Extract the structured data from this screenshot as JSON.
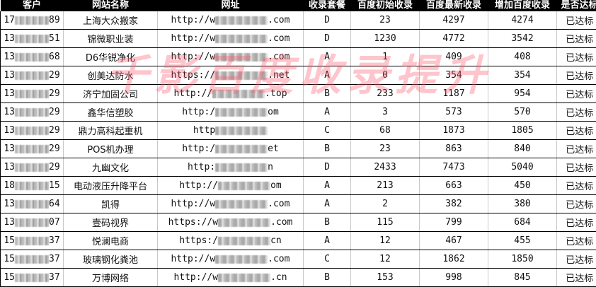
{
  "headers": [
    "客户",
    "网站名称",
    "网址",
    "收录套餐",
    "百度初始收录",
    "百度最新收录",
    "增加百度收录",
    "是否达标"
  ],
  "rows": [
    {
      "customer_prefix": "17",
      "customer_suffix": "89",
      "name": "上海大众搬家",
      "url_prefix": "http://w",
      "url_suffix": ".com",
      "plan": "D",
      "initial": "23",
      "latest": "4297",
      "increase": "4274",
      "status": "已达标"
    },
    {
      "customer_prefix": "13",
      "customer_suffix": "51",
      "name": "锦微职业装",
      "url_prefix": "http://w",
      "url_suffix": ".com",
      "plan": "D",
      "initial": "1230",
      "latest": "4772",
      "increase": "3542",
      "status": "已达标"
    },
    {
      "customer_prefix": "13",
      "customer_suffix": "68",
      "name": "D6华锐净化",
      "url_prefix": "http://w",
      "url_suffix": ".com",
      "plan": "A",
      "initial": "1",
      "latest": "409",
      "increase": "408",
      "status": "已达标"
    },
    {
      "customer_prefix": "13",
      "customer_suffix": "29",
      "name": "创美达防水",
      "url_prefix": "https://",
      "url_suffix": ".net",
      "plan": "A",
      "initial": "0",
      "latest": "354",
      "increase": "354",
      "status": "已达标"
    },
    {
      "customer_prefix": "13",
      "customer_suffix": "29",
      "name": "济宁加固公司",
      "url_prefix": "http://",
      "url_suffix": ".top",
      "plan": "B",
      "initial": "233",
      "latest": "1187",
      "increase": "954",
      "status": "已达标"
    },
    {
      "customer_prefix": "13",
      "customer_suffix": "29",
      "name": "鑫华信塑胶",
      "url_prefix": "http:/",
      "url_suffix": "om",
      "plan": "A",
      "initial": "3",
      "latest": "573",
      "increase": "570",
      "status": "已达标"
    },
    {
      "customer_prefix": "13",
      "customer_suffix": "29",
      "name": "鼎力高科起重机",
      "url_prefix": "http",
      "url_suffix": "",
      "plan": "C",
      "initial": "68",
      "latest": "1873",
      "increase": "1805",
      "status": "已达标"
    },
    {
      "customer_prefix": "13",
      "customer_suffix": "29",
      "name": "POS机办理",
      "url_prefix": "http:/",
      "url_suffix": "et",
      "plan": "B",
      "initial": "23",
      "latest": "863",
      "increase": "840",
      "status": "已达标"
    },
    {
      "customer_prefix": "13",
      "customer_suffix": "29",
      "name": "九幽文化",
      "url_prefix": "http:",
      "url_suffix": "n",
      "plan": "D",
      "initial": "2433",
      "latest": "7473",
      "increase": "5040",
      "status": "已达标"
    },
    {
      "customer_prefix": "18",
      "customer_suffix": "15",
      "name": "电动液压升降平台",
      "url_prefix": "http://",
      "url_suffix": "om",
      "plan": "A",
      "initial": "213",
      "latest": "663",
      "increase": "450",
      "status": "已达标"
    },
    {
      "customer_prefix": "13",
      "customer_suffix": "64",
      "name": "凯得",
      "url_prefix": "http://w",
      "url_suffix": ".com",
      "plan": "A",
      "initial": "2",
      "latest": "382",
      "increase": "380",
      "status": "已达标"
    },
    {
      "customer_prefix": "13",
      "customer_suffix": "07",
      "name": "壹码视界",
      "url_prefix": "https://w",
      "url_suffix": ".com",
      "plan": "B",
      "initial": "115",
      "latest": "799",
      "increase": "684",
      "status": "已达标"
    },
    {
      "customer_prefix": "15",
      "customer_suffix": "37",
      "name": "悦澜电商",
      "url_prefix": "https:/",
      "url_suffix": "cn",
      "plan": "A",
      "initial": "12",
      "latest": "467",
      "increase": "455",
      "status": "已达标"
    },
    {
      "customer_prefix": "15",
      "customer_suffix": "37",
      "name": "玻璃钢化粪池",
      "url_prefix": "http://w",
      "url_suffix": ".com",
      "plan": "C",
      "initial": "12",
      "latest": "1862",
      "increase": "1850",
      "status": "已达标"
    },
    {
      "customer_prefix": "15",
      "customer_suffix": "37",
      "name": "万博网络",
      "url_prefix": "http://w",
      "url_suffix": ".cn",
      "plan": "B",
      "initial": "153",
      "latest": "998",
      "increase": "845",
      "status": "已达标"
    }
  ],
  "watermark": "千影百度收录提升",
  "colors": {
    "header_bg": "#000000",
    "header_text": "#ffffff",
    "watermark": "#ff5a6e"
  }
}
